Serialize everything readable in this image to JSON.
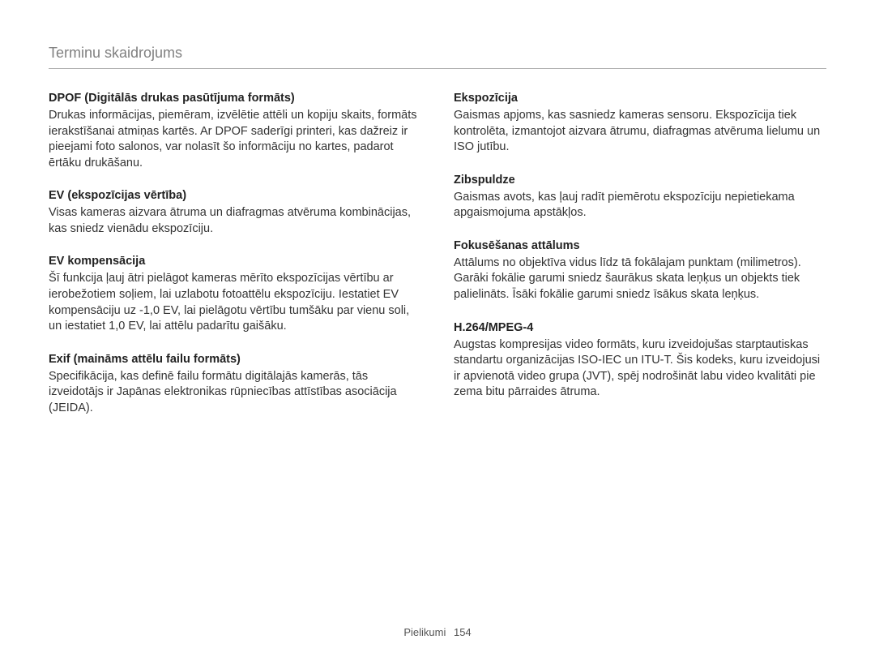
{
  "header": {
    "title": "Terminu skaidrojums"
  },
  "left": [
    {
      "title": "DPOF (Digitālās drukas pasūtījuma formāts)",
      "body": "Drukas informācijas, piemēram, izvēlētie attēli un kopiju skaits, formāts ierakstīšanai atmiņas kartēs. Ar DPOF saderīgi printeri, kas dažreiz ir pieejami foto salonos, var nolasīt šo informāciju no kartes, padarot ērtāku drukāšanu."
    },
    {
      "title": "EV (ekspozīcijas vērtība)",
      "body": "Visas kameras aizvara ātruma un diafragmas atvēruma kombinācijas, kas sniedz vienādu ekspozīciju."
    },
    {
      "title": "EV kompensācija",
      "body": "Šī funkcija ļauj ātri pielāgot kameras mērīto ekspozīcijas vērtību ar ierobežotiem soļiem, lai uzlabotu fotoattēlu ekspozīciju. Iestatiet EV kompensāciju uz -1,0 EV, lai pielāgotu vērtību tumšāku par vienu soli, un iestatiet 1,0 EV, lai attēlu padarītu gaišāku."
    },
    {
      "title": "Exif (maināms attēlu failu formāts)",
      "body": "Specifikācija, kas definē failu formātu digitālajās kamerās, tās izveidotājs ir Japānas elektronikas rūpniecības attīstības asociācija (JEIDA)."
    }
  ],
  "right": [
    {
      "title": "Ekspozīcija",
      "body": "Gaismas apjoms, kas sasniedz kameras sensoru. Ekspozīcija tiek kontrolēta, izmantojot aizvara ātrumu, diafragmas atvēruma lielumu un ISO jutību."
    },
    {
      "title": "Zibspuldze",
      "body": "Gaismas avots, kas ļauj radīt piemērotu ekspozīciju nepietiekama apgaismojuma apstākļos."
    },
    {
      "title": "Fokusēšanas attālums",
      "body": "Attālums no objektīva vidus līdz tā fokālajam punktam (milimetros). Garāki fokālie garumi sniedz šaurākus skata leņķus un objekts tiek palielināts. Īsāki fokālie garumi sniedz īsākus skata leņķus."
    },
    {
      "title": "H.264/MPEG-4",
      "body": "Augstas kompresijas video formāts, kuru izveidojušas starptautiskas standartu organizācijas ISO-IEC un ITU-T. Šis kodeks, kuru izveidojusi ir apvienotā video grupa (JVT), spēj nodrošināt labu video kvalitāti pie zema bitu pārraides ātruma."
    }
  ],
  "footer": {
    "section": "Pielikumi",
    "page": "154"
  }
}
